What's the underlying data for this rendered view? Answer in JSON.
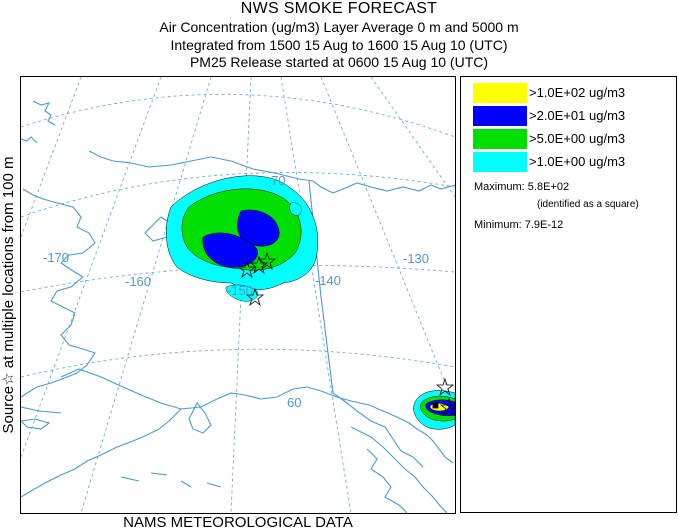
{
  "header": {
    "title": "NWS SMOKE FORECAST",
    "line1": "Air Concentration (ug/m3) Layer Average    0 m and  5000 m",
    "line2": "Integrated from 1500 15 Aug to 1600 15 Aug 10 (UTC)",
    "line3": "PM25 Release started at 0600 15 Aug 10 (UTC)"
  },
  "side_label": "Source☆ at multiple locations   from   100 m",
  "footer": "NAMS METEOROLOGICAL DATA",
  "map": {
    "longitude_labels": [
      "-170",
      "-160",
      "-150",
      "-140",
      "-130"
    ],
    "latitude_labels": [
      "70",
      "60"
    ],
    "colors": {
      "coastline": "#4a9bd0",
      "graticule": "#6aaee0",
      "border": "#4a9bd0"
    }
  },
  "legend": {
    "items": [
      {
        "label": ">1.0E+02 ug/m3",
        "color": "#ffff00"
      },
      {
        "label": ">2.0E+01 ug/m3",
        "color": "#0000ff"
      },
      {
        "label": ">5.0E+00 ug/m3",
        "color": "#00e000"
      },
      {
        "label": ">1.0E+00 ug/m3",
        "color": "#00ffff"
      }
    ],
    "maximum": "Maximum: 5.8E+02",
    "maximum_note": "(identified as a square)",
    "minimum": "Minimum: 7.9E-12"
  }
}
